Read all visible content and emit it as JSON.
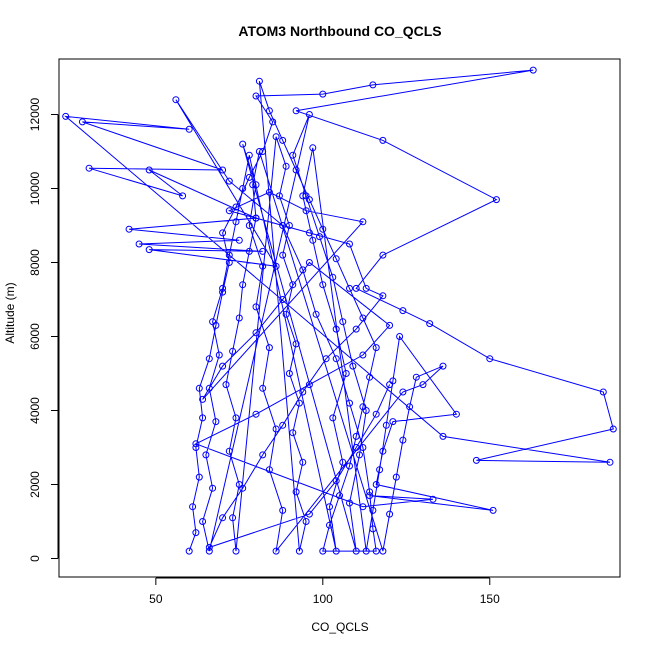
{
  "chart_data": {
    "type": "line",
    "title": "ATOM3 Northbound CO_QCLS",
    "xlabel": "CO_QCLS",
    "ylabel": "Altitude (m)",
    "xlim": [
      21,
      189
    ],
    "ylim": [
      -500,
      13500
    ],
    "x_ticks": [
      50,
      100,
      150
    ],
    "x_tick_labels": [
      "50",
      "100",
      "150"
    ],
    "y_ticks": [
      0,
      2000,
      4000,
      6000,
      8000,
      10000,
      12000
    ],
    "y_tick_labels": [
      "0",
      "2000",
      "4000",
      "6000",
      "8000",
      "10000",
      "12000"
    ],
    "grid": false,
    "series": [
      {
        "color": "#0000ff",
        "marker": "open-circle",
        "points": [
          [
            60,
            200
          ],
          [
            62,
            700
          ],
          [
            61,
            1400
          ],
          [
            63,
            2200
          ],
          [
            62,
            3000
          ],
          [
            64,
            3800
          ],
          [
            63,
            4600
          ],
          [
            66,
            5400
          ],
          [
            68,
            6300
          ],
          [
            70,
            7200
          ],
          [
            72,
            8000
          ],
          [
            70,
            8800
          ],
          [
            74,
            9500
          ],
          [
            78,
            10300
          ],
          [
            82,
            11000
          ],
          [
            85,
            11800
          ],
          [
            80,
            12500
          ],
          [
            100,
            12550
          ],
          [
            115,
            12800
          ],
          [
            163,
            13200
          ],
          [
            92,
            12100
          ],
          [
            118,
            11300
          ],
          [
            152,
            9700
          ],
          [
            118,
            8200
          ],
          [
            110,
            7300
          ],
          [
            124,
            6700
          ],
          [
            132,
            6350
          ],
          [
            150,
            5400
          ],
          [
            184,
            4500
          ],
          [
            187,
            3500
          ],
          [
            146,
            2650
          ],
          [
            186,
            2600
          ],
          [
            136,
            3300
          ],
          [
            23,
            11950
          ],
          [
            60,
            11600
          ],
          [
            28,
            11800
          ],
          [
            70,
            10500
          ],
          [
            30,
            10550
          ],
          [
            58,
            9800
          ],
          [
            48,
            10500
          ],
          [
            80,
            9200
          ],
          [
            42,
            8900
          ],
          [
            75,
            8600
          ],
          [
            45,
            8500
          ],
          [
            82,
            8300
          ],
          [
            48,
            8350
          ],
          [
            86,
            7900
          ],
          [
            56,
            12400
          ],
          [
            72,
            10200
          ],
          [
            88,
            9000
          ],
          [
            94,
            7800
          ],
          [
            98,
            6600
          ],
          [
            104,
            5400
          ],
          [
            108,
            4200
          ],
          [
            112,
            3000
          ],
          [
            114,
            1800
          ],
          [
            115,
            800
          ],
          [
            116,
            200
          ],
          [
            100,
            200
          ],
          [
            102,
            900
          ],
          [
            105,
            1700
          ],
          [
            108,
            2500
          ],
          [
            110,
            3300
          ],
          [
            112,
            4100
          ],
          [
            114,
            4900
          ],
          [
            116,
            5700
          ],
          [
            112,
            6500
          ],
          [
            108,
            7300
          ],
          [
            104,
            8100
          ],
          [
            100,
            8900
          ],
          [
            96,
            9700
          ],
          [
            92,
            10500
          ],
          [
            88,
            11300
          ],
          [
            84,
            12100
          ],
          [
            81,
            12900
          ],
          [
            93,
            200
          ],
          [
            95,
            1000
          ],
          [
            92,
            1800
          ],
          [
            94,
            2600
          ],
          [
            91,
            3400
          ],
          [
            93,
            4200
          ],
          [
            90,
            5000
          ],
          [
            92,
            5800
          ],
          [
            89,
            6600
          ],
          [
            91,
            7400
          ],
          [
            88,
            8200
          ],
          [
            90,
            9000
          ],
          [
            87,
            9800
          ],
          [
            89,
            10600
          ],
          [
            86,
            11400
          ],
          [
            74,
            200
          ],
          [
            73,
            1100
          ],
          [
            75,
            2000
          ],
          [
            72,
            2900
          ],
          [
            74,
            3800
          ],
          [
            71,
            4700
          ],
          [
            73,
            5600
          ],
          [
            75,
            6500
          ],
          [
            76,
            7400
          ],
          [
            78,
            8300
          ],
          [
            80,
            9200
          ],
          [
            79,
            10100
          ],
          [
            81,
            11000
          ],
          [
            118,
            200
          ],
          [
            120,
            1200
          ],
          [
            122,
            2200
          ],
          [
            124,
            3200
          ],
          [
            126,
            4100
          ],
          [
            128,
            4900
          ],
          [
            136,
            5200
          ],
          [
            130,
            4700
          ],
          [
            124,
            4500
          ],
          [
            86,
            200
          ],
          [
            88,
            1300
          ],
          [
            84,
            2400
          ],
          [
            86,
            3500
          ],
          [
            82,
            4600
          ],
          [
            84,
            5700
          ],
          [
            80,
            6800
          ],
          [
            82,
            7900
          ],
          [
            78,
            9000
          ],
          [
            80,
            10100
          ],
          [
            76,
            11200
          ],
          [
            110,
            200
          ],
          [
            108,
            1500
          ],
          [
            111,
            2800
          ],
          [
            113,
            4000
          ],
          [
            109,
            5200
          ],
          [
            106,
            6400
          ],
          [
            103,
            7600
          ],
          [
            99,
            8700
          ],
          [
            95,
            9800
          ],
          [
            91,
            10900
          ],
          [
            96,
            12000
          ],
          [
            66,
            200
          ],
          [
            64,
            1000
          ],
          [
            67,
            1900
          ],
          [
            65,
            2800
          ],
          [
            68,
            3700
          ],
          [
            66,
            4600
          ],
          [
            69,
            5500
          ],
          [
            67,
            6400
          ],
          [
            70,
            7300
          ],
          [
            72,
            8200
          ],
          [
            74,
            9100
          ],
          [
            76,
            10000
          ],
          [
            78,
            10900
          ],
          [
            104,
            200
          ],
          [
            102,
            1400
          ],
          [
            106,
            2600
          ],
          [
            103,
            3800
          ],
          [
            107,
            5000
          ],
          [
            104,
            6200
          ],
          [
            100,
            7400
          ],
          [
            97,
            8600
          ],
          [
            94,
            9800
          ],
          [
            97,
            11100
          ],
          [
            113,
            200
          ],
          [
            115,
            1300
          ],
          [
            117,
            2400
          ],
          [
            119,
            3600
          ],
          [
            121,
            4800
          ],
          [
            123,
            6000
          ],
          [
            140,
            3900
          ],
          [
            121,
            3700
          ],
          [
            118,
            2900
          ],
          [
            116,
            2000
          ],
          [
            151,
            1300
          ],
          [
            114,
            1700
          ],
          [
            133,
            1600
          ],
          [
            112,
            1400
          ],
          [
            62,
            3100
          ],
          [
            80,
            3900
          ],
          [
            96,
            4700
          ],
          [
            112,
            5500
          ],
          [
            120,
            6300
          ],
          [
            96,
            8000
          ],
          [
            88,
            7000
          ],
          [
            80,
            6100
          ],
          [
            70,
            5200
          ],
          [
            64,
            4300
          ],
          [
            112,
            9100
          ],
          [
            95,
            9400
          ],
          [
            84,
            9900
          ],
          [
            72,
            9400
          ],
          [
            96,
            8800
          ],
          [
            108,
            8500
          ],
          [
            113,
            7300
          ],
          [
            118,
            7100
          ],
          [
            110,
            6200
          ],
          [
            101,
            5400
          ],
          [
            94,
            4500
          ],
          [
            88,
            3600
          ],
          [
            82,
            2800
          ],
          [
            76,
            1900
          ],
          [
            70,
            1100
          ],
          [
            66,
            300
          ],
          [
            96,
            1200
          ],
          [
            104,
            2100
          ],
          [
            110,
            3000
          ],
          [
            116,
            3900
          ],
          [
            120,
            4700
          ]
        ]
      }
    ]
  }
}
